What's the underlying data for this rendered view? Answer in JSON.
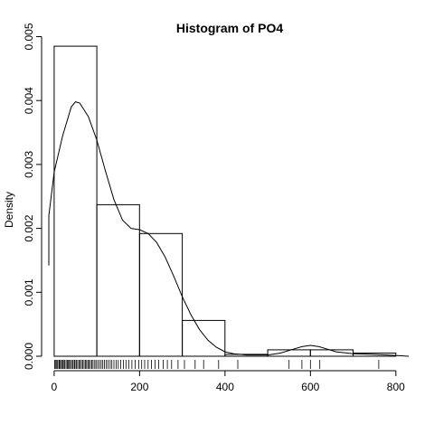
{
  "chart_data": {
    "type": "bar",
    "title": "Histogram of  PO4",
    "xlabel": "",
    "ylabel": "Density",
    "xlim": [
      -4,
      830
    ],
    "ylim": [
      0,
      0.005
    ],
    "x_ticks": [
      0,
      200,
      400,
      600,
      800
    ],
    "x_tick_labels": [
      "0",
      "200",
      "400",
      "600",
      "800"
    ],
    "y_ticks": [
      0,
      0.001,
      0.002,
      0.003,
      0.004,
      0.005
    ],
    "y_tick_labels": [
      "0.000",
      "0.001",
      "0.002",
      "0.003",
      "0.004",
      "0.005"
    ],
    "bins": [
      {
        "from": 0,
        "to": 100,
        "density": 0.00485
      },
      {
        "from": 100,
        "to": 200,
        "density": 0.00237
      },
      {
        "from": 200,
        "to": 300,
        "density": 0.00192
      },
      {
        "from": 300,
        "to": 400,
        "density": 0.00056
      },
      {
        "from": 400,
        "to": 500,
        "density": 3e-05
      },
      {
        "from": 500,
        "to": 600,
        "density": 0.0001
      },
      {
        "from": 600,
        "to": 700,
        "density": 0.0001
      },
      {
        "from": 700,
        "to": 800,
        "density": 5e-05
      }
    ],
    "density_curve": [
      [
        -38,
        0.00142
      ],
      [
        -20,
        0.0022
      ],
      [
        0,
        0.00288
      ],
      [
        20,
        0.00345
      ],
      [
        40,
        0.0039
      ],
      [
        50,
        0.00398
      ],
      [
        60,
        0.00396
      ],
      [
        80,
        0.00375
      ],
      [
        100,
        0.00338
      ],
      [
        120,
        0.0029
      ],
      [
        140,
        0.00245
      ],
      [
        160,
        0.00213
      ],
      [
        180,
        0.002
      ],
      [
        200,
        0.00198
      ],
      [
        220,
        0.00192
      ],
      [
        240,
        0.00178
      ],
      [
        260,
        0.00155
      ],
      [
        280,
        0.00125
      ],
      [
        300,
        0.00093
      ],
      [
        320,
        0.00065
      ],
      [
        340,
        0.00042
      ],
      [
        360,
        0.00025
      ],
      [
        380,
        0.00014
      ],
      [
        400,
        7e-05
      ],
      [
        420,
        4e-05
      ],
      [
        450,
        2e-05
      ],
      [
        500,
        2e-05
      ],
      [
        530,
        5e-05
      ],
      [
        560,
        0.00011
      ],
      [
        580,
        0.00015
      ],
      [
        600,
        0.00017
      ],
      [
        620,
        0.00015
      ],
      [
        640,
        0.00011
      ],
      [
        660,
        7e-05
      ],
      [
        700,
        4e-05
      ],
      [
        740,
        3e-05
      ],
      [
        780,
        2e-05
      ],
      [
        830,
        0.0
      ]
    ],
    "rug": [
      1,
      3,
      6,
      8,
      11,
      13,
      15,
      18,
      20,
      23,
      25,
      28,
      31,
      33,
      36,
      38,
      41,
      44,
      47,
      49,
      52,
      55,
      58,
      61,
      64,
      67,
      70,
      73,
      76,
      79,
      82,
      85,
      88,
      91,
      95,
      98,
      102,
      106,
      110,
      114,
      118,
      122,
      126,
      131,
      135,
      140,
      145,
      150,
      156,
      162,
      168,
      175,
      182,
      190,
      198,
      205,
      212,
      220,
      228,
      236,
      245,
      255,
      265,
      275,
      290,
      305,
      330,
      350,
      385,
      430,
      550,
      580,
      600,
      622,
      760
    ]
  }
}
